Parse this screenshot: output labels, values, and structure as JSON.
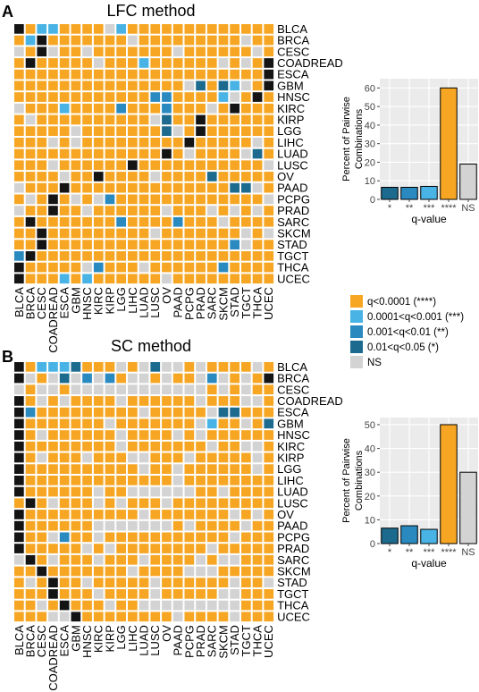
{
  "colors": {
    "q4": "#F6A623",
    "q3": "#48B3E4",
    "q2": "#2A8AC0",
    "q1": "#1C6A8E",
    "ns": "#D3D3D3",
    "diag": "#141414"
  },
  "legend": {
    "items": [
      {
        "key": "q4",
        "label": "q<0.0001 (****)"
      },
      {
        "key": "q3",
        "label": "0.0001<q<0.001 (***)"
      },
      {
        "key": "q2",
        "label": "0.001<q<0.01 (**)"
      },
      {
        "key": "q1",
        "label": "0.01<q<0.05 (*)"
      },
      {
        "key": "ns",
        "label": "NS"
      }
    ]
  },
  "chart_data": [
    {
      "type": "heatmap",
      "panel": "A",
      "title": "LFC method",
      "labels": [
        "BLCA",
        "BRCA",
        "CESC",
        "COADREAD",
        "ESCA",
        "GBM",
        "HNSC",
        "KIRC",
        "KIRP",
        "LGG",
        "LIHC",
        "LUAD",
        "LUSC",
        "OV",
        "PAAD",
        "PCPG",
        "PRAD",
        "SARC",
        "SKCM",
        "STAD",
        "TGCT",
        "THCA",
        "UCEC"
      ],
      "cell_codes": "d4334444n3444444444444443d4444444n444444444n44n4dn44n4444444n444444n44d44444n4443444444n4n4d4444444444444444444444d444444444444444n1413n4d4444444444442244443n4d4n4443444424442444n4d4444n4444444444n144d44444444444n44444441n4d444444444n4n444444444d44444n44444444444444d4n4444n14444n444444d44444444444n4444n44d4444n4444144444n444d4444444444444411n44n4d4n4n24444444444444nn44d44n444444n444n4n4n44d4444444244442444n444444d444444444n4444444n4n44d44444444444444442n442d444444444444444444444d44444n2444n44444424444d444343444444n444444444d"
    },
    {
      "type": "bar",
      "panel": "A",
      "categories": [
        "*",
        "**",
        "***",
        "****",
        "NS"
      ],
      "values": [
        6.5,
        6.5,
        7,
        60,
        19
      ],
      "xlabel": "q-value",
      "ylabel": "Percent of Pairwise Combinations",
      "ylim": [
        0,
        65
      ],
      "yticks": [
        0,
        10,
        20,
        30,
        40,
        50,
        60
      ]
    },
    {
      "type": "heatmap",
      "panel": "B",
      "title": "SC method",
      "labels": [
        "BLCA",
        "BRCA",
        "CESC",
        "COADREAD",
        "ESCA",
        "GBM",
        "HNSC",
        "KIRC",
        "KIRP",
        "LGG",
        "LIHC",
        "LUAD",
        "LUSC",
        "OV",
        "PAAD",
        "PCPG",
        "PRAD",
        "SARC",
        "SKCM",
        "STAD",
        "TGCT",
        "THCA",
        "UCEC"
      ],
      "cell_codes": "d43331444n4n1nn4n4444n4dn4n1n2n24nn4n44n2n4n4dn4nn4nnnnnnnnnnnn4n4n44d4n4n4444n444444n444nn4d2444444444n44444n11444d4444444n4444444n344n41d4n444444n4444n4n444444d44444444n4444444n44nn4d4n444n444nn444n44444n4d4444444444n44n444444n4d4444444444444n44444444d444444n44nnnnnn44n44444d4n444n4n444n444444444d4444444444n4444444n4n4d444444nnnnnnn4n4444n44d44n244n44444444444n444d44444n4n44444444n44444nd4n444n444n4444n4nn44444d4444444n4444nnn444444n4d44n44444n444444n44n444d444n4444n44444nn44444n4d444n44nnnnnnnnn444444nnd44444444n4444n4444n4nn4d"
    },
    {
      "type": "bar",
      "panel": "B",
      "categories": [
        "*",
        "**",
        "***",
        "****",
        "NS"
      ],
      "values": [
        6.5,
        7.5,
        6,
        50,
        30
      ],
      "xlabel": "q-value",
      "ylabel": "Percent of Pairwise Combinations",
      "ylim": [
        0,
        53
      ],
      "yticks": [
        0,
        10,
        20,
        30,
        40,
        50
      ]
    }
  ]
}
